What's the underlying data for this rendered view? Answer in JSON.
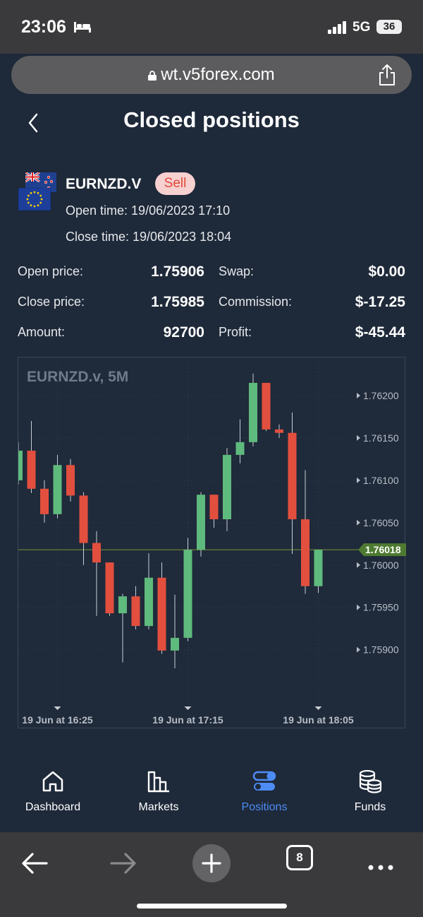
{
  "status": {
    "time": "23:06",
    "network": "5G",
    "battery": "36"
  },
  "browser": {
    "url": "wt.v5forex.com",
    "tab_count": "8"
  },
  "header": {
    "title": "Closed positions"
  },
  "position": {
    "symbol": "EURNZD.V",
    "side": "Sell",
    "open_time": "Open time: 19/06/2023 17:10",
    "close_time": "Close time: 19/06/2023 18:04",
    "details": {
      "open_price_label": "Open price:",
      "open_price": "1.75906",
      "close_price_label": "Close price:",
      "close_price": "1.75985",
      "amount_label": "Amount:",
      "amount": "92700",
      "swap_label": "Swap:",
      "swap": "$0.00",
      "commission_label": "Commission:",
      "commission": "$-17.25",
      "profit_label": "Profit:",
      "profit": "$-45.44"
    }
  },
  "chart_data": {
    "type": "candlestick",
    "title": "EURNZD.v, 5M",
    "y_ticks": [
      "1.76200",
      "1.76150",
      "1.76100",
      "1.76050",
      "1.76000",
      "1.75950",
      "1.75900"
    ],
    "y_tick_values": [
      1.762,
      1.7615,
      1.761,
      1.7605,
      1.76,
      1.7595,
      1.759
    ],
    "ylim": [
      1.75853,
      1.76245
    ],
    "x_labels": [
      "19 Jun at 16:25",
      "19 Jun at 17:15",
      "19 Jun at 18:05"
    ],
    "x_label_candle_index": [
      3,
      13,
      23
    ],
    "current_price": 1.76018,
    "current_price_label": "1.76018",
    "colors": {
      "up": "#5fba7d",
      "down": "#e34f3e",
      "price_line": "#6e8a3a",
      "price_tag": "#4e7a31"
    },
    "candles": [
      {
        "o": 1.761,
        "c": 1.76135,
        "h": 1.76145,
        "l": 1.76095
      },
      {
        "o": 1.76135,
        "c": 1.7609,
        "h": 1.7617,
        "l": 1.76085
      },
      {
        "o": 1.7609,
        "c": 1.7606,
        "h": 1.761,
        "l": 1.7605
      },
      {
        "o": 1.7606,
        "c": 1.76118,
        "h": 1.7613,
        "l": 1.76055
      },
      {
        "o": 1.76118,
        "c": 1.76082,
        "h": 1.76125,
        "l": 1.76075
      },
      {
        "o": 1.76082,
        "c": 1.76026,
        "h": 1.76086,
        "l": 1.76
      },
      {
        "o": 1.76026,
        "c": 1.76003,
        "h": 1.7604,
        "l": 1.7594
      },
      {
        "o": 1.76003,
        "c": 1.75943,
        "h": 1.76003,
        "l": 1.7594
      },
      {
        "o": 1.75943,
        "c": 1.75963,
        "h": 1.75966,
        "l": 1.75885
      },
      {
        "o": 1.75963,
        "c": 1.75928,
        "h": 1.75975,
        "l": 1.75924
      },
      {
        "o": 1.75928,
        "c": 1.75985,
        "h": 1.76014,
        "l": 1.75924
      },
      {
        "o": 1.75985,
        "c": 1.75899,
        "h": 1.76003,
        "l": 1.75895
      },
      {
        "o": 1.75899,
        "c": 1.75914,
        "h": 1.75965,
        "l": 1.75878
      },
      {
        "o": 1.75914,
        "c": 1.76018,
        "h": 1.76032,
        "l": 1.7591
      },
      {
        "o": 1.76018,
        "c": 1.76083,
        "h": 1.76086,
        "l": 1.7601
      },
      {
        "o": 1.76083,
        "c": 1.76054,
        "h": 1.76083,
        "l": 1.76044
      },
      {
        "o": 1.76054,
        "c": 1.7613,
        "h": 1.76138,
        "l": 1.7604
      },
      {
        "o": 1.7613,
        "c": 1.76145,
        "h": 1.76172,
        "l": 1.7612
      },
      {
        "o": 1.76145,
        "c": 1.76215,
        "h": 1.76226,
        "l": 1.7614
      },
      {
        "o": 1.76215,
        "c": 1.7616,
        "h": 1.76215,
        "l": 1.76158
      },
      {
        "o": 1.7616,
        "c": 1.76156,
        "h": 1.76166,
        "l": 1.7615
      },
      {
        "o": 1.76156,
        "c": 1.76054,
        "h": 1.7618,
        "l": 1.76013
      },
      {
        "o": 1.76054,
        "c": 1.75975,
        "h": 1.76112,
        "l": 1.75966
      },
      {
        "o": 1.75975,
        "c": 1.76018,
        "h": 1.76018,
        "l": 1.75967
      }
    ]
  },
  "nav": {
    "items": [
      {
        "label": "Dashboard"
      },
      {
        "label": "Markets"
      },
      {
        "label": "Positions"
      },
      {
        "label": "Funds"
      }
    ],
    "active": "Positions",
    "active_color": "#4d8cf5"
  }
}
